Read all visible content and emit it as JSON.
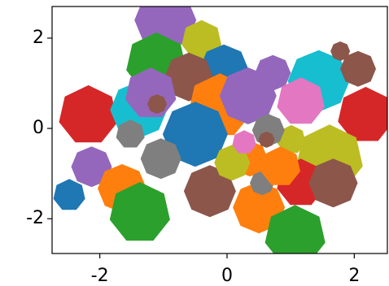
{
  "chart_data": {
    "type": "scatter",
    "x": [
      -0.97,
      -1.11,
      -0.31,
      -0.4,
      -0.05,
      -0.6,
      -2.18,
      -1.39,
      -1.2,
      -1.1,
      -0.11,
      0.33,
      0.72,
      1.44,
      1.16,
      2.06,
      1.78,
      2.18,
      -0.5,
      -1.52,
      -2.13,
      -2.48,
      -1.65,
      -1.37,
      -1.04,
      -0.27,
      1.61,
      1.16,
      1.67,
      0.5,
      1.07,
      0.36,
      0.55,
      1.01,
      0.08,
      0.84,
      0.65,
      0.62,
      0.27
    ],
    "values": [
      2.4,
      1.44,
      2.18,
      1.95,
      1.32,
      1.14,
      0.29,
      0.41,
      0.77,
      0.54,
      0.5,
      0.72,
      1.23,
      1.05,
      0.59,
      1.32,
      1.71,
      0.29,
      -0.13,
      -0.13,
      -0.85,
      -1.48,
      -1.33,
      -1.87,
      -0.67,
      -1.39,
      -0.67,
      -1.21,
      -1.21,
      -1.75,
      -2.38,
      -0.67,
      -1.21,
      -0.25,
      -0.76,
      -0.85,
      -0.04,
      -0.25,
      -0.31
    ],
    "sizes": [
      38,
      38,
      7,
      25,
      30,
      30,
      37,
      35,
      32,
      12,
      40,
      35,
      22,
      38,
      30,
      22,
      12,
      35,
      40,
      18,
      25,
      20,
      30,
      38,
      25,
      32,
      42,
      30,
      30,
      32,
      38,
      22,
      15,
      18,
      22,
      25,
      20,
      10,
      15
    ],
    "colors": [
      "#9467bd",
      "#2ca02c",
      "#d62728",
      "#bcbd22",
      "#1f77b4",
      "#8c564b",
      "#d62728",
      "#17becf",
      "#9467bd",
      "#8c564b",
      "#ff7f0e",
      "#9467bd",
      "#9467bd",
      "#17becf",
      "#e377c2",
      "#8c564b",
      "#8c564b",
      "#d62728",
      "#1f77b4",
      "#7f7f7f",
      "#9467bd",
      "#1f77b4",
      "#ff7f0e",
      "#2ca02c",
      "#7f7f7f",
      "#8c564b",
      "#bcbd22",
      "#d62728",
      "#8c564b",
      "#ff7f0e",
      "#2ca02c",
      "#ff7f0e",
      "#7f7f7f",
      "#bcbd22",
      "#bcbd22",
      "#ff7f0e",
      "#7f7f7f",
      "#8c564b",
      "#e377c2"
    ],
    "sides": [
      8,
      7,
      8,
      7,
      8,
      8,
      7,
      8,
      7,
      8,
      7,
      8,
      8,
      8,
      7,
      8,
      8,
      7,
      8,
      7,
      8,
      7,
      8,
      7,
      8,
      8,
      7,
      7,
      8,
      8,
      7,
      8,
      8,
      7,
      8,
      7,
      8,
      8,
      7
    ],
    "xlim": [
      -2.75,
      2.52
    ],
    "ylim": [
      -2.77,
      2.7
    ],
    "xticks": [
      -2,
      0,
      2
    ],
    "yticks": [
      -2,
      0,
      2
    ]
  }
}
